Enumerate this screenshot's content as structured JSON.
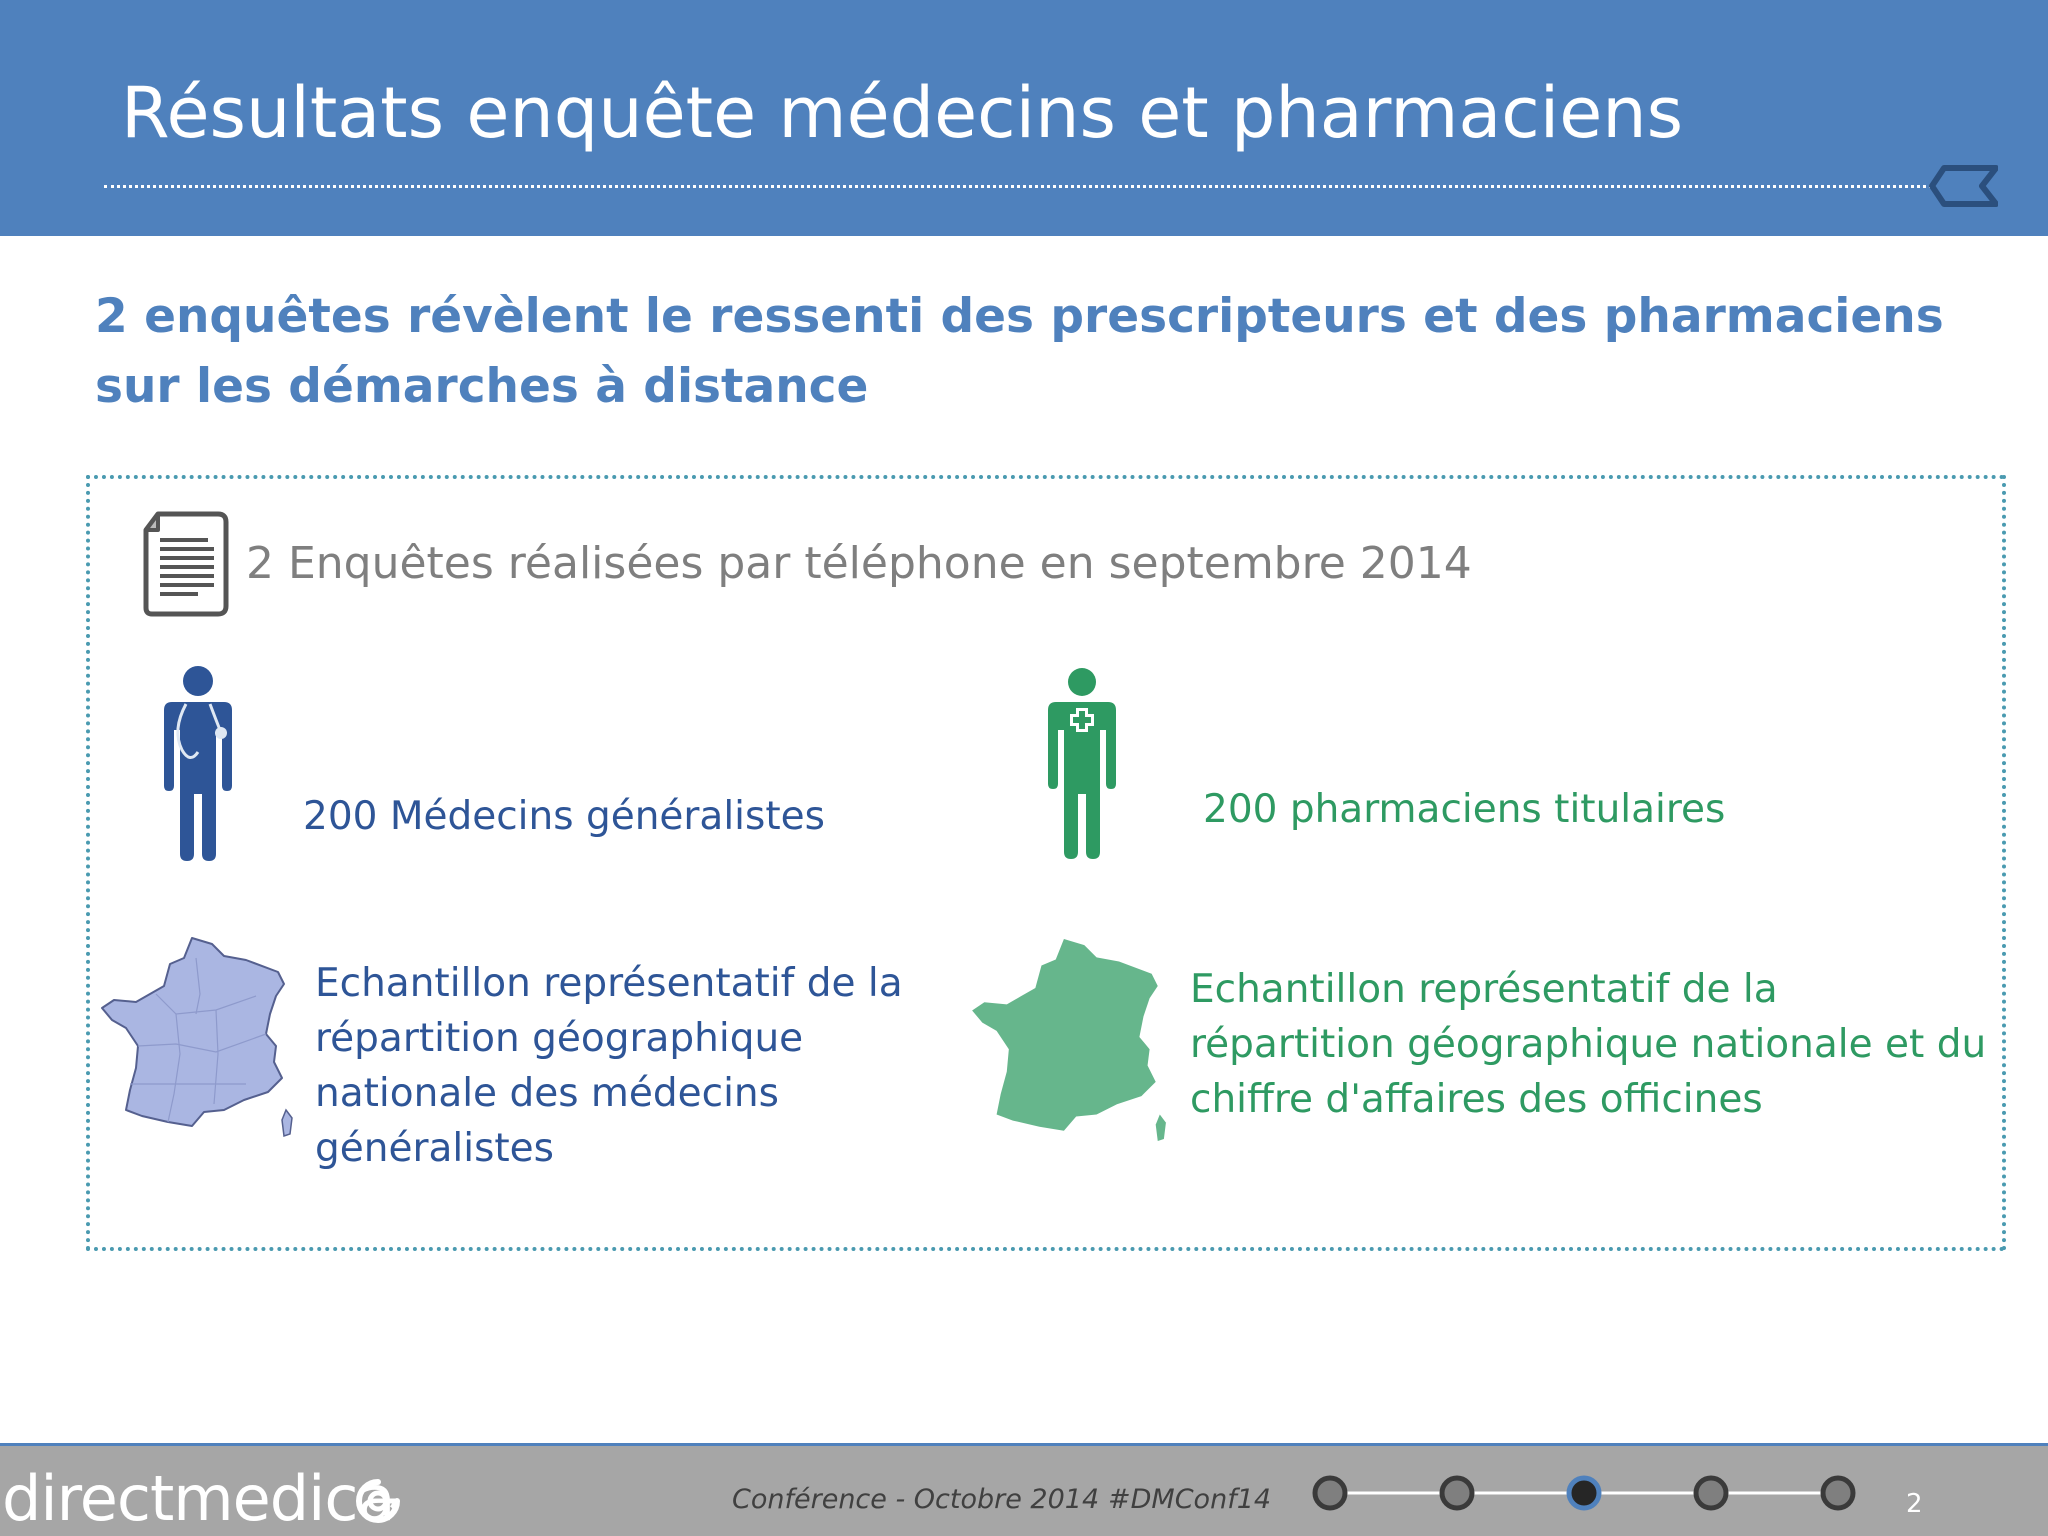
{
  "header": {
    "title": "Résultats enquête médecins et pharmaciens"
  },
  "subtitle": "2 enquêtes révèlent le ressenti des prescripteurs et des pharmaciens sur les démarches à distance",
  "survey": {
    "intro": "2 Enquêtes réalisées par téléphone en septembre 2014",
    "doctors": {
      "count_label": "200 Médecins généralistes",
      "sample_description": "Echantillon représentatif de la répartition géographique nationale des médecins généralistes",
      "color": "#2e5597",
      "map_color": "#aab6e2"
    },
    "pharmacists": {
      "count_label": "200 pharmaciens titulaires",
      "sample_description": "Echantillon représentatif de la répartition géographique nationale et du chiffre d'affaires des officines",
      "color": "#2e9a62",
      "map_color": "#66b68c"
    }
  },
  "footer": {
    "brand": "directmedica",
    "conference": "Conférence - Octobre 2014",
    "hashtag": "#DMConf14",
    "progress": {
      "steps": 5,
      "current": 3
    },
    "page_number": "2"
  },
  "colors": {
    "header_bg": "#4f81bd",
    "accent": "#4f81bd",
    "footer_bg": "#a6a6a6"
  }
}
